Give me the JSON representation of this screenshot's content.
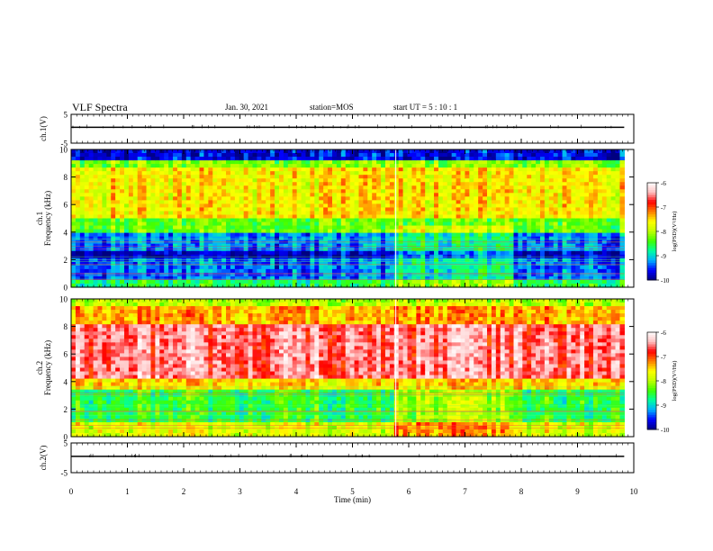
{
  "header": {
    "title": "VLF Spectra",
    "date": "Jan. 30, 2021",
    "station": "station=MOS",
    "start": "start UT =  5 : 10 : 1"
  },
  "chart_data": {
    "type": "heatmap",
    "xlabel": "Time (min)",
    "xlim": [
      0,
      10
    ],
    "xticks": [
      "0",
      "1",
      "2",
      "3",
      "4",
      "5",
      "6",
      "7",
      "8",
      "9",
      "10"
    ],
    "panels": [
      {
        "id": "ch1v",
        "kind": "waveform",
        "ylabel": "ch.1(V)",
        "ylim": [
          -5,
          5
        ],
        "yticks": [
          "5",
          "-5"
        ],
        "baseline": 0
      },
      {
        "id": "ch1",
        "kind": "spectrogram",
        "ylabel": "ch.1\nFrequency (kHz)",
        "ylim": [
          0,
          10
        ],
        "yticks": [
          "0",
          "2",
          "4",
          "6",
          "8",
          "10"
        ],
        "colorbar": {
          "label": "log(PSD)(V²/Hz)",
          "range": [
            -10,
            -6
          ],
          "ticks": [
            "-6",
            "-7",
            "-8",
            "-9",
            "-10"
          ]
        }
      },
      {
        "id": "ch2",
        "kind": "spectrogram",
        "ylabel": "ch.2\nFrequency (kHz)",
        "ylim": [
          0,
          10
        ],
        "yticks": [
          "0",
          "2",
          "4",
          "6",
          "8",
          "10"
        ],
        "colorbar": {
          "label": "log(PSD)(V²/Hz)",
          "range": [
            -10,
            -6
          ],
          "ticks": [
            "-6",
            "-7",
            "-8",
            "-9",
            "-10"
          ]
        }
      },
      {
        "id": "ch2v",
        "kind": "waveform",
        "ylabel": "ch.2(V)",
        "ylim": [
          -5,
          5
        ],
        "yticks": [
          "5",
          "-5"
        ],
        "baseline": 0
      }
    ],
    "data_end_min": 9.83,
    "colormap": [
      "#000080",
      "#0000ff",
      "#00b0ff",
      "#00ffa0",
      "#40ff00",
      "#c0ff00",
      "#ffff00",
      "#ff8000",
      "#ff0000",
      "#ffc0c0",
      "#ffffff"
    ]
  }
}
